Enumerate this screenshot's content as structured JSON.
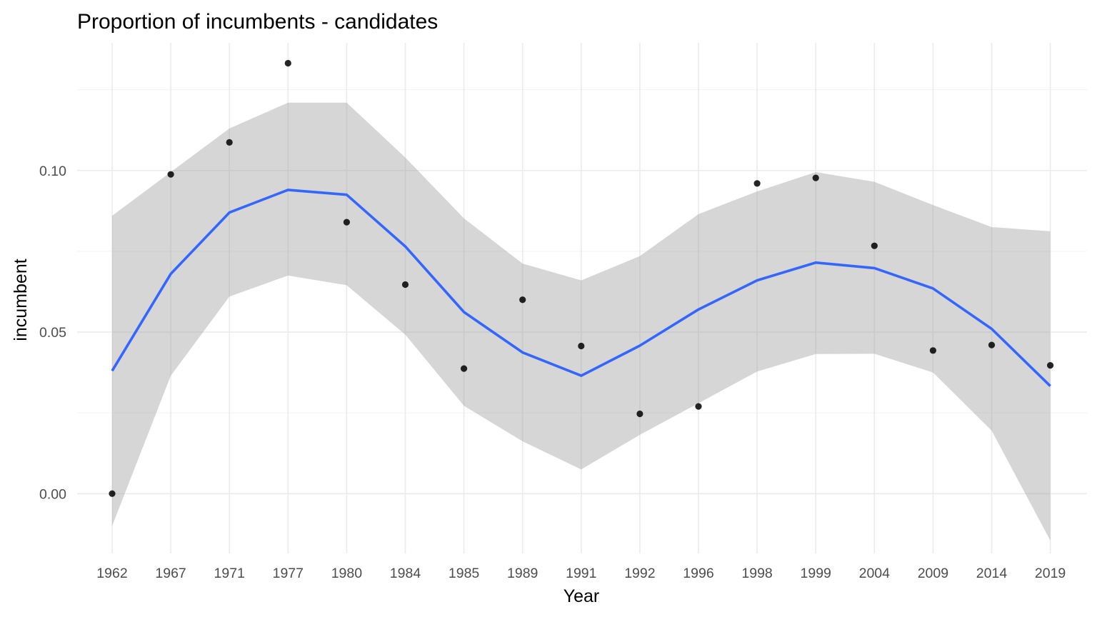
{
  "chart_data": {
    "type": "scatter",
    "title": "Proportion of incumbents - candidates",
    "xlabel": "Year",
    "ylabel": "incumbent",
    "categories": [
      "1962",
      "1967",
      "1971",
      "1977",
      "1980",
      "1984",
      "1985",
      "1989",
      "1991",
      "1992",
      "1996",
      "1998",
      "1999",
      "2004",
      "2009",
      "2014",
      "2019"
    ],
    "y_ticks": [
      0.0,
      0.05,
      0.1
    ],
    "y_tick_labels": [
      "0.00",
      "0.05",
      "0.10"
    ],
    "ylim": [
      -0.0185,
      0.1395
    ],
    "grid": true,
    "legend": "none",
    "points": [
      0.0,
      0.0988,
      0.1087,
      0.1332,
      0.084,
      0.0647,
      0.0387,
      0.06,
      0.0457,
      0.0247,
      0.027,
      0.096,
      0.0977,
      0.0767,
      0.0443,
      0.046,
      0.0397
    ],
    "smooth": {
      "method": "loess",
      "fit": [
        0.038,
        0.068,
        0.087,
        0.094,
        0.0925,
        0.0765,
        0.0562,
        0.0437,
        0.0365,
        0.0458,
        0.057,
        0.066,
        0.0715,
        0.0698,
        0.0635,
        0.051,
        0.0333
      ],
      "lower": [
        -0.01,
        0.0365,
        0.061,
        0.0675,
        0.0645,
        0.0492,
        0.0272,
        0.0162,
        0.0075,
        0.0182,
        0.028,
        0.0378,
        0.0432,
        0.0433,
        0.0375,
        0.0195,
        -0.0145
      ],
      "upper": [
        0.086,
        0.0995,
        0.113,
        0.121,
        0.121,
        0.104,
        0.0852,
        0.0712,
        0.066,
        0.0735,
        0.0865,
        0.0935,
        0.0995,
        0.0965,
        0.0893,
        0.0825,
        0.0812
      ]
    },
    "colors": {
      "points": "#000000",
      "line": "#3366ff",
      "ribbon": "#999999"
    }
  }
}
